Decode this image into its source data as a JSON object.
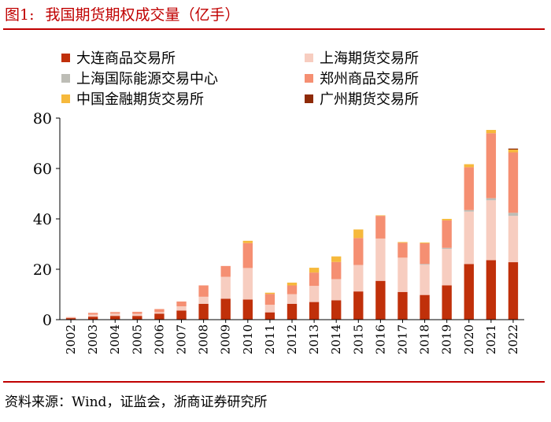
{
  "figure": {
    "label": "图1:",
    "title": "我国期货期权成交量（亿手）",
    "source": "资料来源：Wind，证监会，浙商证券研究所"
  },
  "chart_data": {
    "type": "bar",
    "stacked": true,
    "categories": [
      "2002",
      "2003",
      "2004",
      "2005",
      "2006",
      "2007",
      "2008",
      "2009",
      "2010",
      "2011",
      "2012",
      "2013",
      "2014",
      "2015",
      "2016",
      "2017",
      "2018",
      "2019",
      "2020",
      "2021",
      "2022"
    ],
    "ylim": [
      0,
      80
    ],
    "yticks": [
      0,
      20,
      40,
      60,
      80
    ],
    "grid": false,
    "legend_position": "top",
    "series": [
      {
        "name": "大连商品交易所",
        "color": "#c0300a",
        "values": [
          0.6,
          1.2,
          1.5,
          1.5,
          2.4,
          3.6,
          6.3,
          8.3,
          8.0,
          2.9,
          6.3,
          7.0,
          7.7,
          11.2,
          15.4,
          11.0,
          9.8,
          13.6,
          22.1,
          23.6,
          22.8
        ]
      },
      {
        "name": "上海期货交易所",
        "color": "#f7cdc0",
        "values": [
          0.2,
          0.8,
          0.9,
          0.8,
          0.6,
          1.7,
          2.8,
          8.7,
          12.5,
          3.0,
          3.8,
          6.4,
          8.4,
          10.5,
          16.8,
          13.6,
          12.0,
          14.5,
          20.8,
          23.8,
          18.4
        ]
      },
      {
        "name": "上海国际能源交易中心",
        "color": "#bdbdb6",
        "values": [
          0,
          0,
          0,
          0,
          0,
          0,
          0,
          0,
          0,
          0,
          0,
          0,
          0,
          0,
          0,
          0,
          0.3,
          0.4,
          0.6,
          0.8,
          1.2
        ]
      },
      {
        "name": "郑州商品交易所",
        "color": "#f58f72",
        "values": [
          0.2,
          0.7,
          0.6,
          0.8,
          1.2,
          1.9,
          4.5,
          4.3,
          9.9,
          4.3,
          3.5,
          5.3,
          6.8,
          10.7,
          9.0,
          5.9,
          8.2,
          10.9,
          17.0,
          25.8,
          24.0
        ]
      },
      {
        "name": "中国金融期货交易所",
        "color": "#f6b93c",
        "values": [
          0,
          0,
          0,
          0,
          0,
          0,
          0,
          0,
          0.9,
          0.5,
          1.1,
          1.9,
          2.2,
          3.4,
          0.2,
          0.3,
          0.3,
          0.6,
          1.2,
          1.3,
          1.1
        ]
      },
      {
        "name": "广州期货交易所",
        "color": "#8e2a06",
        "values": [
          0,
          0,
          0,
          0,
          0,
          0,
          0,
          0,
          0,
          0,
          0,
          0,
          0,
          0,
          0,
          0,
          0,
          0,
          0,
          0,
          0.4
        ]
      }
    ]
  }
}
